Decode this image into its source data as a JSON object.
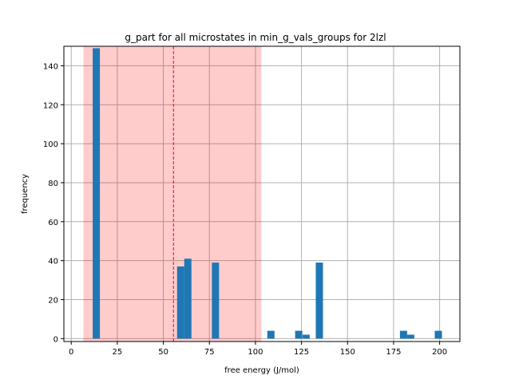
{
  "chart_data": {
    "type": "bar",
    "title": "g_part for all microstates in min_g_vals_groups for 2lzl",
    "xlabel": "free energy (J/mol)",
    "ylabel": "frequency",
    "xlim": [
      -4,
      211
    ],
    "ylim": [
      -1.5,
      150
    ],
    "xticks": [
      0,
      25,
      50,
      75,
      100,
      125,
      150,
      175,
      200
    ],
    "yticks": [
      0,
      20,
      40,
      60,
      80,
      100,
      120,
      140
    ],
    "grid": true,
    "bin_width": 3.9,
    "bar_color": "#1f77b4",
    "bins": [
      {
        "x": 13.6,
        "value": 149
      },
      {
        "x": 59.4,
        "value": 37
      },
      {
        "x": 63.3,
        "value": 41
      },
      {
        "x": 78.3,
        "value": 39
      },
      {
        "x": 108.4,
        "value": 4
      },
      {
        "x": 123.5,
        "value": 4
      },
      {
        "x": 127.5,
        "value": 2
      },
      {
        "x": 134.7,
        "value": 39
      },
      {
        "x": 180.4,
        "value": 4
      },
      {
        "x": 184.3,
        "value": 2
      },
      {
        "x": 199.3,
        "value": 4
      }
    ],
    "shaded_region": {
      "x_start": 6.6,
      "x_end": 103.2,
      "color": "#ff0000",
      "opacity": 0.2
    },
    "vertical_line": {
      "x": 55.5,
      "color": "#ff0000",
      "style": "dashed"
    }
  }
}
